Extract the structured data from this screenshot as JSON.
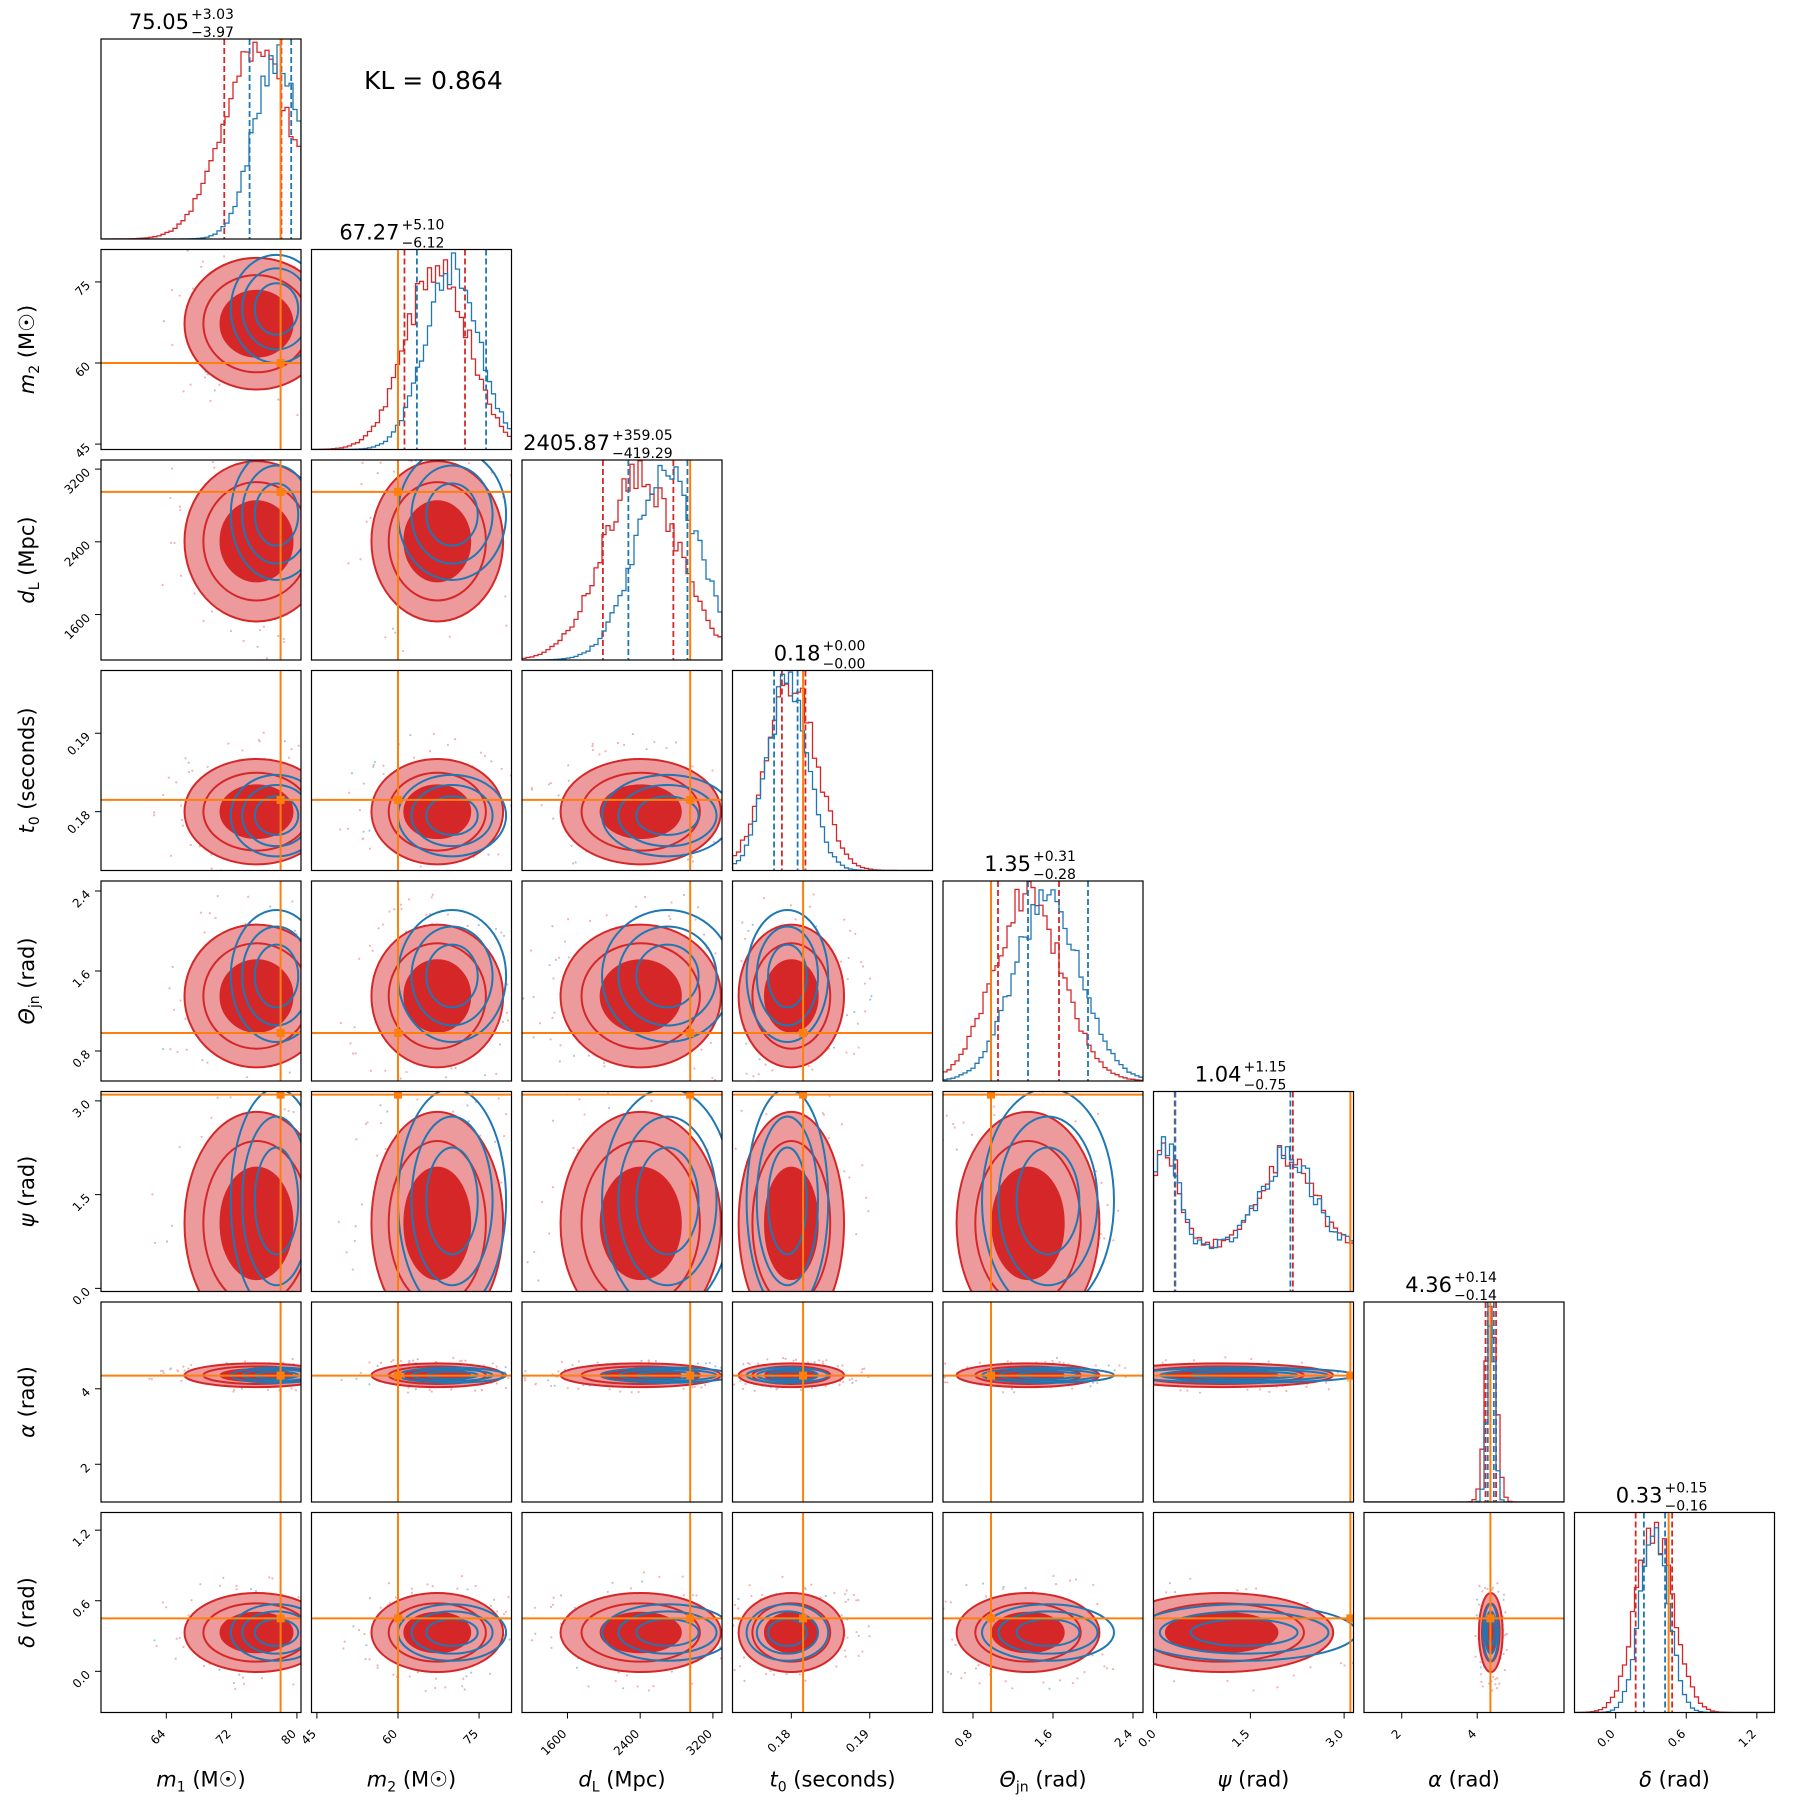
{
  "kl_text": "KL = 0.864",
  "colors": {
    "red": "#d62728",
    "blue": "#1f77b4",
    "orange": "#ff7f0e",
    "red_fill_light": "#ec9a9b"
  },
  "chart_data": {
    "type": "corner",
    "params": [
      {
        "name": "m1",
        "axis_label": "m₁ (M☉)",
        "label_main": "m",
        "label_sub": "1",
        "label_unit": " (M☉)",
        "range": [
          56,
          80.5
        ],
        "ticks": [
          64,
          72,
          80
        ],
        "true_value": 78,
        "median": "75.05",
        "plus": "+3.03",
        "minus": "−3.97"
      },
      {
        "name": "m2",
        "axis_label": "m₂ (M☉)",
        "label_main": "m",
        "label_sub": "2",
        "label_unit": " (M☉)",
        "range": [
          44,
          81
        ],
        "ticks": [
          45,
          60,
          75
        ],
        "true_value": 60,
        "median": "67.27",
        "plus": "+5.10",
        "minus": "−6.12"
      },
      {
        "name": "dL",
        "axis_label": "d_L (Mpc)",
        "label_main": "d",
        "label_sub": "L",
        "label_unit": " (Mpc)",
        "range": [
          1100,
          3300
        ],
        "ticks": [
          1600,
          2400,
          3200
        ],
        "true_value": 2950,
        "median": "2405.87",
        "plus": "+359.05",
        "minus": "−419.29"
      },
      {
        "name": "t0",
        "axis_label": "t₀ (seconds)",
        "label_main": "t",
        "label_sub": "0",
        "label_unit": " (seconds)",
        "range": [
          0.1725,
          0.198
        ],
        "ticks": [
          0.18,
          0.19
        ],
        "true_value": 0.1815,
        "median": "0.18",
        "plus": "+0.00",
        "minus": "−0.00"
      },
      {
        "name": "theta_jn",
        "axis_label": "Θjn (rad)",
        "label_main": "Θ",
        "label_sub": "jn",
        "label_unit": " (rad)",
        "range": [
          0.5,
          2.5
        ],
        "ticks": [
          0.8,
          1.6,
          2.4
        ],
        "true_value": 0.98,
        "median": "1.35",
        "plus": "+0.31",
        "minus": "−0.28"
      },
      {
        "name": "psi",
        "axis_label": "ψ (rad)",
        "label_main": "ψ",
        "label_sub": "",
        "label_unit": " (rad)",
        "range": [
          -0.05,
          3.15
        ],
        "ticks": [
          0.0,
          1.5,
          3.0
        ],
        "true_value": 3.1,
        "median": "1.04",
        "plus": "+1.15",
        "minus": "−0.75"
      },
      {
        "name": "alpha",
        "axis_label": "α (rad)",
        "label_main": "α",
        "label_sub": "",
        "label_unit": " (rad)",
        "range": [
          1.0,
          6.3
        ],
        "ticks": [
          2,
          4
        ],
        "true_value": 4.35,
        "median": "4.36",
        "plus": "+0.14",
        "minus": "−0.14"
      },
      {
        "name": "delta",
        "axis_label": "δ (rad)",
        "label_main": "δ",
        "label_sub": "",
        "label_unit": " (rad)",
        "range": [
          -0.35,
          1.35
        ],
        "ticks": [
          0.0,
          0.6,
          1.2
        ],
        "true_value": 0.45,
        "median": "0.33",
        "plus": "+0.15",
        "minus": "−0.16"
      }
    ],
    "tick_labels": {
      "m1": [
        "64",
        "72",
        "80"
      ],
      "m2": [
        "45",
        "60",
        "75"
      ],
      "dL": [
        "1600",
        "2400",
        "3200"
      ],
      "t0": [
        "0.18",
        "0.19"
      ],
      "theta_jn": [
        "0.8",
        "1.6",
        "2.4"
      ],
      "psi": [
        "0.0",
        "1.5",
        "3.0"
      ],
      "alpha": [
        "2",
        "4"
      ],
      "delta": [
        "0.0",
        "0.6",
        "1.2"
      ]
    },
    "quantile_lines": {
      "red": [
        [
          71.1,
          78.1
        ],
        [
          61.2,
          72.4
        ],
        [
          1990,
          2765
        ],
        [
          0.1788,
          0.1818
        ],
        [
          1.05,
          1.66
        ],
        [
          0.29,
          2.18
        ],
        [
          4.22,
          4.5
        ],
        [
          0.17,
          0.48
        ]
      ],
      "blue": [
        [
          74.2,
          79.3
        ],
        [
          63.5,
          76.3
        ],
        [
          2270,
          2920
        ],
        [
          0.1778,
          0.1808
        ],
        [
          1.35,
          1.95
        ],
        [
          0.3,
          2.14
        ],
        [
          4.28,
          4.44
        ],
        [
          0.24,
          0.42
        ]
      ]
    },
    "posterior_median": {
      "red": [
        75.05,
        67.27,
        2405.87,
        0.18,
        1.35,
        1.04,
        4.36,
        0.33
      ],
      "blue": [
        77.5,
        70.0,
        2700.0,
        0.1795,
        1.55,
        1.4,
        4.36,
        0.33
      ]
    },
    "posterior_spread": {
      "red": [
        4.2,
        5.8,
        420.0,
        0.0032,
        0.34,
        0.85,
        0.15,
        0.16
      ],
      "blue": [
        2.8,
        5.0,
        360.0,
        0.0026,
        0.33,
        0.9,
        0.1,
        0.12
      ]
    }
  }
}
